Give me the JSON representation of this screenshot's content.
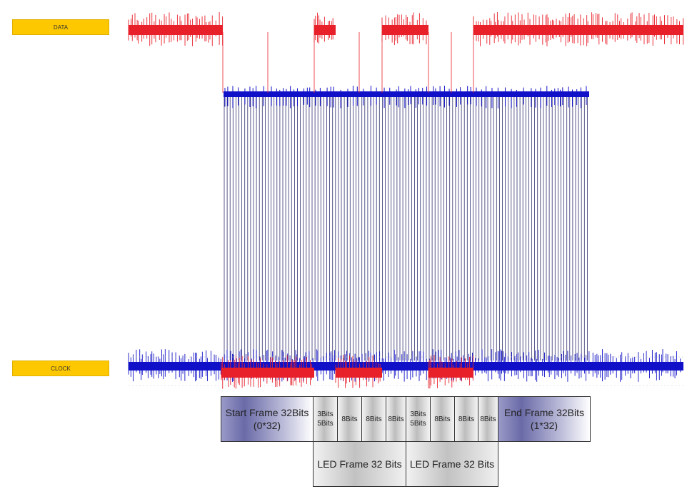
{
  "labels": {
    "data": "DATA",
    "clock": "CLOCK"
  },
  "frames": {
    "start": {
      "title": "Start Frame 32Bits",
      "value": "(0*32)"
    },
    "end": {
      "title": "End Frame 32Bits",
      "value": "(1*32)"
    },
    "led1_cells": [
      {
        "l1": "3Bits",
        "l2": "5Bits"
      },
      {
        "l1": "8Bits"
      },
      {
        "l1": "8Bits"
      },
      {
        "l1": "8Bits"
      }
    ],
    "led2_cells": [
      {
        "l1": "3Bits",
        "l2": "5Bits"
      },
      {
        "l1": "8Bits"
      },
      {
        "l1": "8Bits"
      },
      {
        "l1": "8Bits"
      }
    ],
    "led1": "LED Frame 32 Bits",
    "led2": "LED Frame 32 Bits"
  },
  "colors": {
    "data": "#e8202a",
    "clock": "#1010c8",
    "clock_lines": "#303070",
    "label": "#fdc800"
  }
}
